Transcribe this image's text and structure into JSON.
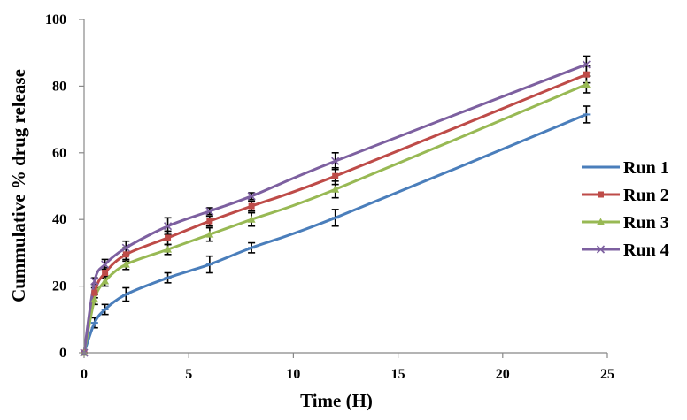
{
  "chart_data": {
    "type": "line",
    "title": "",
    "xlabel": "Time (H)",
    "ylabel": "Cummulative % drug release",
    "xlim": [
      0,
      25
    ],
    "ylim": [
      0,
      100
    ],
    "xticks": [
      0,
      5,
      10,
      15,
      20,
      25
    ],
    "yticks": [
      0,
      20,
      40,
      60,
      80,
      100
    ],
    "grid": false,
    "legend_position": "right",
    "x": [
      0,
      0.5,
      1,
      2,
      4,
      6,
      8,
      12,
      24
    ],
    "series": [
      {
        "name": "Run 1",
        "color": "#4a7ebb",
        "marker": "dash",
        "values": [
          0,
          9,
          13,
          17.5,
          22.5,
          26.5,
          31.5,
          40.5,
          71.5
        ],
        "errors": [
          0,
          1.5,
          1.5,
          2,
          1.5,
          2.5,
          1.5,
          2.5,
          2.5
        ]
      },
      {
        "name": "Run 2",
        "color": "#be4b48",
        "marker": "square",
        "values": [
          0,
          18,
          24,
          29.5,
          34.5,
          39.5,
          44,
          53,
          83.5
        ],
        "errors": [
          0,
          1.5,
          1.5,
          2,
          2,
          1.5,
          1.5,
          2.5,
          2.5
        ]
      },
      {
        "name": "Run 3",
        "color": "#98b954",
        "marker": "triangle",
        "values": [
          0,
          16,
          21.5,
          26.5,
          31,
          35.5,
          40,
          49,
          80.5
        ],
        "errors": [
          0,
          1.5,
          1.5,
          1.5,
          1.5,
          2,
          2,
          2.5,
          2.5
        ]
      },
      {
        "name": "Run 4",
        "color": "#7d60a0",
        "marker": "x",
        "values": [
          0,
          21.5,
          26.5,
          31.5,
          38,
          42.5,
          47,
          57.5,
          86.5
        ],
        "errors": [
          0,
          1,
          1.5,
          2,
          2.5,
          1,
          1,
          2.5,
          2.5
        ]
      }
    ]
  }
}
